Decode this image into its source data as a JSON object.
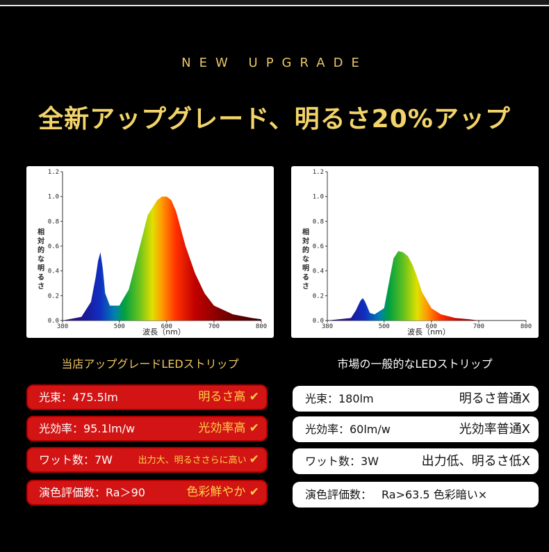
{
  "eyebrow": "NEW UPGRADE",
  "headline": "全新アップグレード、明るさ20%アップ",
  "chart_data": [
    {
      "type": "area",
      "xlabel": "波長（nm）",
      "ylabel": "相対的な明るさ",
      "xlim": [
        380,
        800
      ],
      "ylim": [
        0,
        1.2
      ],
      "x_ticks": [
        "380",
        "500",
        "600",
        "700",
        "800"
      ],
      "y_ticks": [
        "0.0",
        "0.2",
        "0.4",
        "0.6",
        "0.8",
        "1.0",
        "1.2"
      ],
      "x": [
        380,
        420,
        440,
        450,
        455,
        460,
        465,
        470,
        480,
        500,
        520,
        540,
        560,
        580,
        590,
        600,
        610,
        620,
        640,
        660,
        680,
        700,
        740,
        780,
        800
      ],
      "values": [
        0.0,
        0.03,
        0.15,
        0.35,
        0.48,
        0.55,
        0.42,
        0.22,
        0.12,
        0.12,
        0.25,
        0.55,
        0.85,
        0.97,
        1.0,
        1.0,
        0.97,
        0.88,
        0.6,
        0.38,
        0.22,
        0.12,
        0.05,
        0.02,
        0.01
      ]
    },
    {
      "type": "area",
      "xlabel": "波長（nm）",
      "ylabel": "相対的な明るさ",
      "xlim": [
        380,
        800
      ],
      "ylim": [
        0,
        1.2
      ],
      "x_ticks": [
        "380",
        "500",
        "600",
        "700",
        "800"
      ],
      "y_ticks": [
        "0.0",
        "0.2",
        "0.4",
        "0.6",
        "0.8",
        "1.0",
        "1.2"
      ],
      "x": [
        380,
        430,
        440,
        450,
        455,
        460,
        470,
        480,
        500,
        510,
        520,
        530,
        540,
        550,
        560,
        570,
        580,
        600,
        620,
        650,
        680,
        700,
        800
      ],
      "values": [
        0.0,
        0.02,
        0.08,
        0.16,
        0.18,
        0.15,
        0.06,
        0.05,
        0.1,
        0.3,
        0.5,
        0.56,
        0.55,
        0.52,
        0.45,
        0.35,
        0.23,
        0.1,
        0.05,
        0.02,
        0.01,
        0.0,
        0.0
      ]
    }
  ],
  "left": {
    "caption": "当店アップグレードLEDストリップ",
    "rows": [
      {
        "label": "光束：475.5lm",
        "value": "明るさ高"
      },
      {
        "label": "光効率：95.1lm/w",
        "value": "光効率高"
      },
      {
        "label": "ワット数：7W",
        "value": "出力大、明るささらに高い"
      },
      {
        "label": "演色評価数：Ra＞90",
        "value": "色彩鮮やか"
      }
    ]
  },
  "right": {
    "caption": "市場の一般的なLEDストリップ",
    "rows": [
      {
        "label": "光束：180lm",
        "value": "明るさ普通X"
      },
      {
        "label": "光効率：60lm/w",
        "value": "光効率普通X"
      },
      {
        "label": "ワット数：3W",
        "value": "出力低、明るさ低X"
      },
      {
        "label": "演色評価数：",
        "value": "Ra>63.5 色彩暗い×"
      }
    ]
  },
  "colors": {
    "gold": "#f3d46a",
    "red": "#d21414",
    "check": "#ffd24a"
  },
  "icons": {
    "check": "check-icon"
  }
}
